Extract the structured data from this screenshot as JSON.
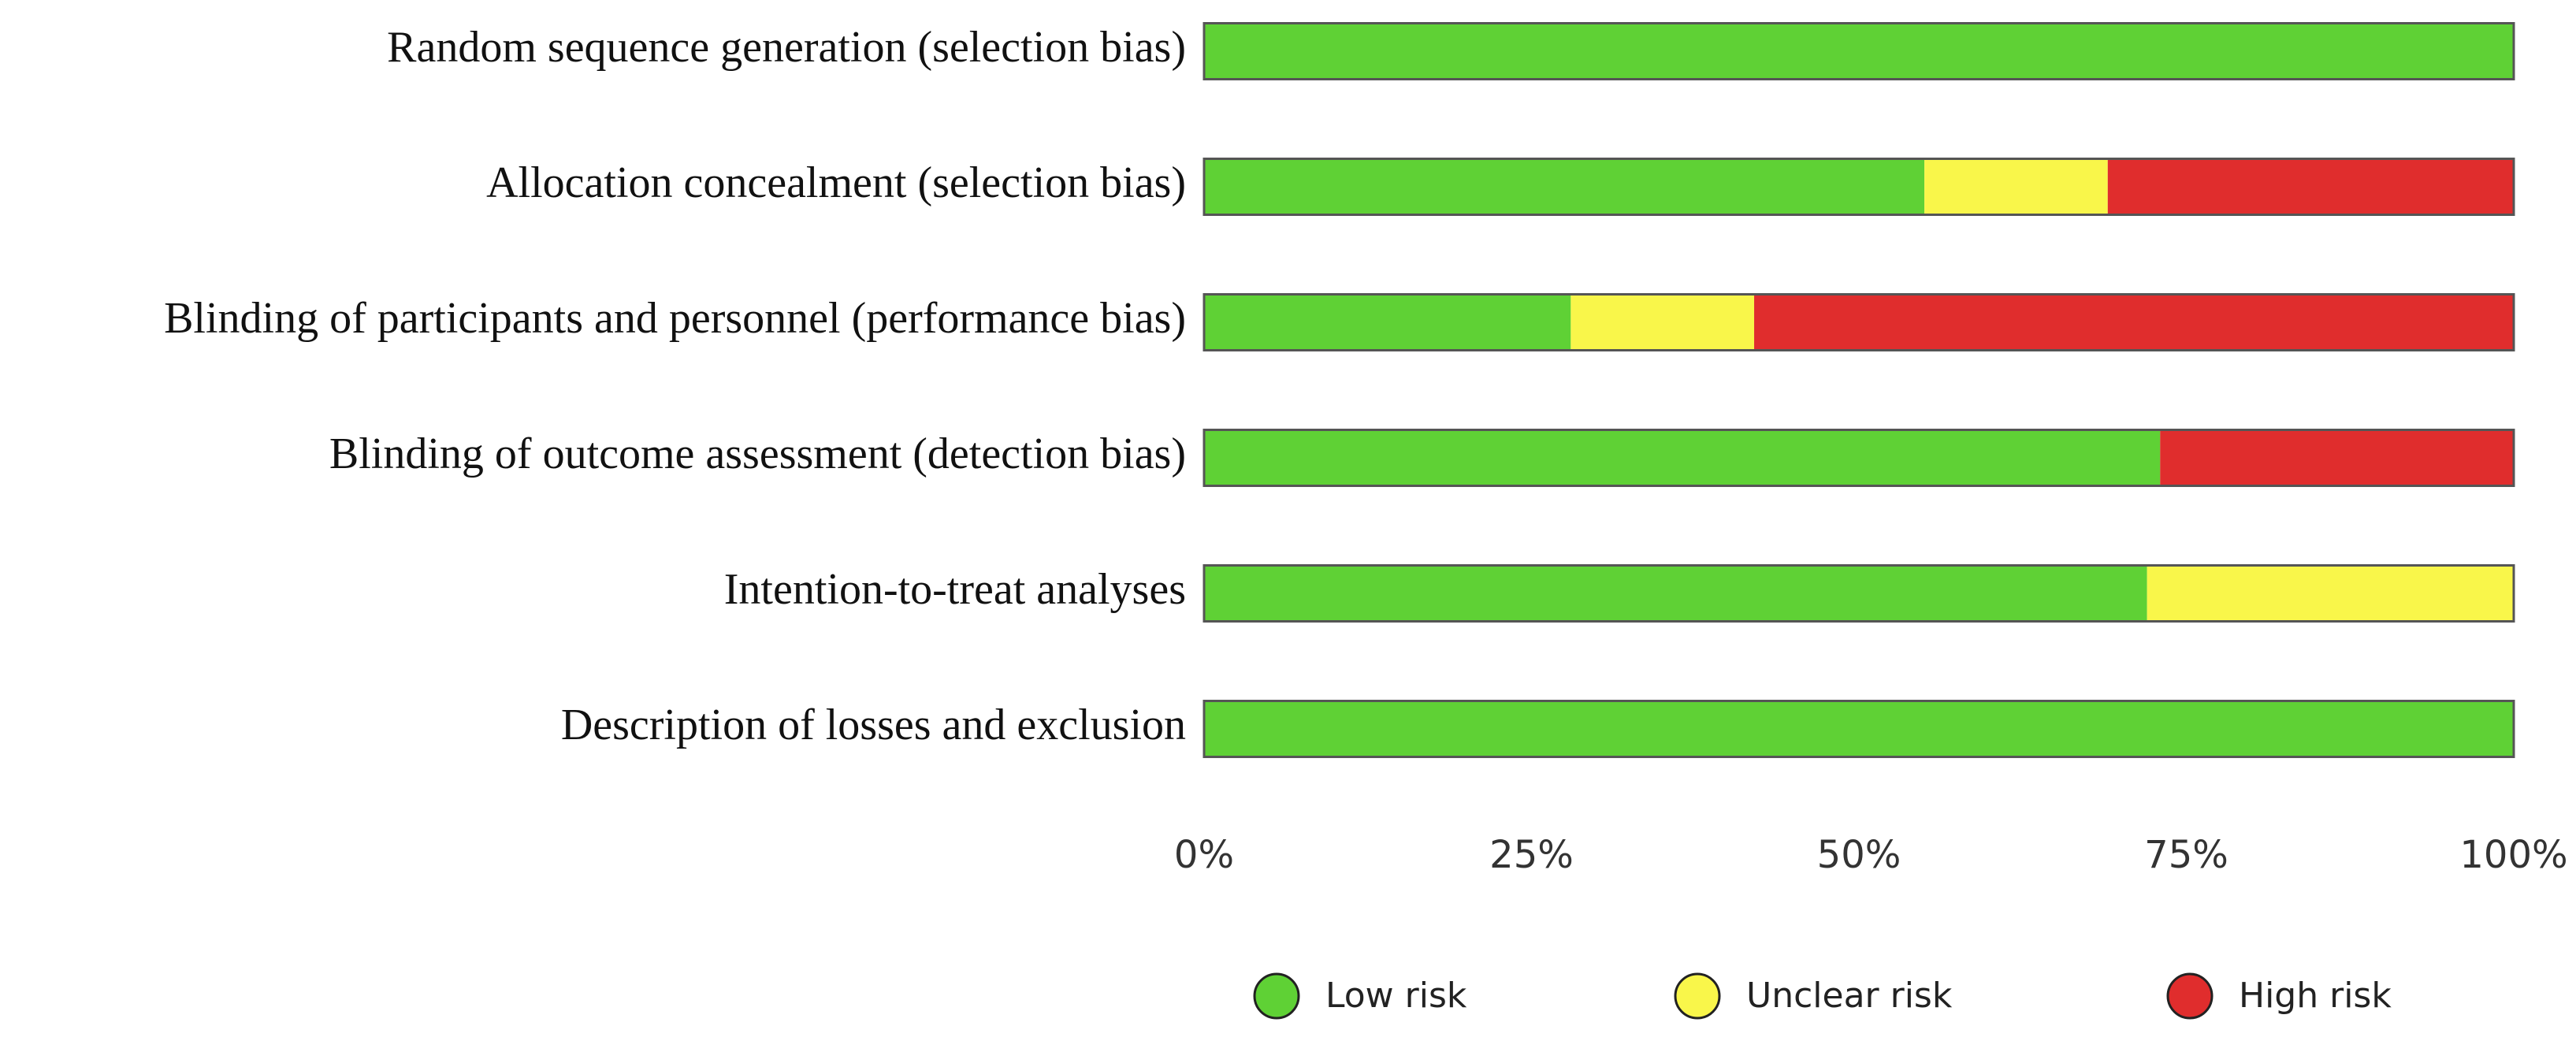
{
  "chart_data": {
    "type": "bar",
    "orientation": "horizontal",
    "stacked": true,
    "categories": [
      "Random sequence generation (selection bias)",
      "Allocation concealment (selection bias)",
      "Blinding of participants and personnel (performance bias)",
      "Blinding of outcome assessment (detection bias)",
      "Intention-to-treat analyses",
      "Description of losses and exclusion"
    ],
    "series": [
      {
        "name": "Low risk",
        "color": "#5fd135",
        "values": [
          100,
          55,
          28,
          73,
          72,
          100
        ]
      },
      {
        "name": "Unclear risk",
        "color": "#f9f64a",
        "values": [
          0,
          14,
          14,
          0,
          28,
          0
        ]
      },
      {
        "name": "High risk",
        "color": "#e02d2d",
        "values": [
          0,
          31,
          58,
          27,
          0,
          0
        ]
      }
    ],
    "xlim": [
      0,
      100
    ],
    "xticks": [
      {
        "value": 0,
        "label": "0%"
      },
      {
        "value": 25,
        "label": "25%"
      },
      {
        "value": 50,
        "label": "50%"
      },
      {
        "value": 75,
        "label": "75%"
      },
      {
        "value": 100,
        "label": "100%"
      }
    ],
    "grid": false,
    "legend": "bottom"
  }
}
